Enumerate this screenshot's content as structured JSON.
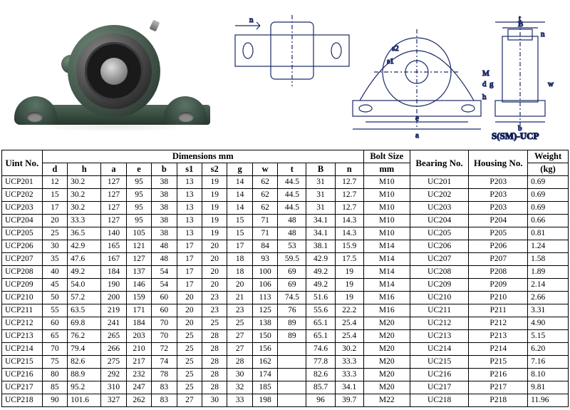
{
  "diagram": {
    "label": "S(SM)-UCP",
    "dims_letters": [
      "n",
      "a",
      "e",
      "b",
      "s1",
      "s2",
      "h",
      "M",
      "d",
      "t",
      "B",
      "g",
      "w"
    ]
  },
  "table": {
    "header": {
      "unit": "Uint No.",
      "dimensions": "Dimensions   mm",
      "bolt": "Bolt Size",
      "bolt_unit": "mm",
      "bearing": "Bearing No.",
      "housing": "Housing No.",
      "weight": "Weight",
      "weight_unit": "(kg)"
    },
    "dim_cols": [
      "d",
      "h",
      "a",
      "e",
      "b",
      "s1",
      "s2",
      "g",
      "w",
      "t",
      "B",
      "n"
    ],
    "rows": [
      {
        "u": "UCP201",
        "d": "12",
        "h": "30.2",
        "a": "127",
        "e": "95",
        "b": "38",
        "s1": "13",
        "s2": "19",
        "g": "14",
        "w": "62",
        "t": "44.5",
        "B": "31",
        "n": "12.7",
        "bolt": "M10",
        "bear": "UC201",
        "house": "P203",
        "wt": "0.69"
      },
      {
        "u": "UCP202",
        "d": "15",
        "h": "30.2",
        "a": "127",
        "e": "95",
        "b": "38",
        "s1": "13",
        "s2": "19",
        "g": "14",
        "w": "62",
        "t": "44.5",
        "B": "31",
        "n": "12.7",
        "bolt": "M10",
        "bear": "UC202",
        "house": "P203",
        "wt": "0.69"
      },
      {
        "u": "UCP203",
        "d": "17",
        "h": "30.2",
        "a": "127",
        "e": "95",
        "b": "38",
        "s1": "13",
        "s2": "19",
        "g": "14",
        "w": "62",
        "t": "44.5",
        "B": "31",
        "n": "12.7",
        "bolt": "M10",
        "bear": "UC203",
        "house": "P203",
        "wt": "0.69"
      },
      {
        "u": "UCP204",
        "d": "20",
        "h": "33.3",
        "a": "127",
        "e": "95",
        "b": "38",
        "s1": "13",
        "s2": "19",
        "g": "15",
        "w": "71",
        "t": "48",
        "B": "34.1",
        "n": "14.3",
        "bolt": "M10",
        "bear": "UC204",
        "house": "P204",
        "wt": "0.66"
      },
      {
        "u": "UCP205",
        "d": "25",
        "h": "36.5",
        "a": "140",
        "e": "105",
        "b": "38",
        "s1": "13",
        "s2": "19",
        "g": "15",
        "w": "71",
        "t": "48",
        "B": "34.1",
        "n": "14.3",
        "bolt": "M10",
        "bear": "UC205",
        "house": "P205",
        "wt": "0.81"
      },
      {
        "u": "UCP206",
        "d": "30",
        "h": "42.9",
        "a": "165",
        "e": "121",
        "b": "48",
        "s1": "17",
        "s2": "20",
        "g": "17",
        "w": "84",
        "t": "53",
        "B": "38.1",
        "n": "15.9",
        "bolt": "M14",
        "bear": "UC206",
        "house": "P206",
        "wt": "1.24"
      },
      {
        "u": "UCP207",
        "d": "35",
        "h": "47.6",
        "a": "167",
        "e": "127",
        "b": "48",
        "s1": "17",
        "s2": "20",
        "g": "18",
        "w": "93",
        "t": "59.5",
        "B": "42.9",
        "n": "17.5",
        "bolt": "M14",
        "bear": "UC207",
        "house": "P207",
        "wt": "1.58"
      },
      {
        "u": "UCP208",
        "d": "40",
        "h": "49.2",
        "a": "184",
        "e": "137",
        "b": "54",
        "s1": "17",
        "s2": "20",
        "g": "18",
        "w": "100",
        "t": "69",
        "B": "49.2",
        "n": "19",
        "bolt": "M14",
        "bear": "UC208",
        "house": "P208",
        "wt": "1.89"
      },
      {
        "u": "UCP209",
        "d": "45",
        "h": "54.0",
        "a": "190",
        "e": "146",
        "b": "54",
        "s1": "17",
        "s2": "20",
        "g": "20",
        "w": "106",
        "t": "69",
        "B": "49.2",
        "n": "19",
        "bolt": "M14",
        "bear": "UC209",
        "house": "P209",
        "wt": "2.14"
      },
      {
        "u": "UCP210",
        "d": "50",
        "h": "57.2",
        "a": "200",
        "e": "159",
        "b": "60",
        "s1": "20",
        "s2": "23",
        "g": "21",
        "w": "113",
        "t": "74.5",
        "B": "51.6",
        "n": "19",
        "bolt": "M16",
        "bear": "UC210",
        "house": "P210",
        "wt": "2.66"
      },
      {
        "u": "UCP211",
        "d": "55",
        "h": "63.5",
        "a": "219",
        "e": "171",
        "b": "60",
        "s1": "20",
        "s2": "23",
        "g": "23",
        "w": "125",
        "t": "76",
        "B": "55.6",
        "n": "22.2",
        "bolt": "M16",
        "bear": "UC211",
        "house": "P211",
        "wt": "3.31"
      },
      {
        "u": "UCP212",
        "d": "60",
        "h": "69.8",
        "a": "241",
        "e": "184",
        "b": "70",
        "s1": "20",
        "s2": "25",
        "g": "25",
        "w": "138",
        "t": "89",
        "B": "65.1",
        "n": "25.4",
        "bolt": "M20",
        "bear": "UC212",
        "house": "P212",
        "wt": "4.90"
      },
      {
        "u": "UCP213",
        "d": "65",
        "h": "76.2",
        "a": "265",
        "e": "203",
        "b": "70",
        "s1": "25",
        "s2": "28",
        "g": "27",
        "w": "150",
        "t": "89",
        "B": "65.1",
        "n": "25.4",
        "bolt": "M20",
        "bear": "UC213",
        "house": "P213",
        "wt": "5.15"
      },
      {
        "u": "UCP214",
        "d": "70",
        "h": "79.4",
        "a": "266",
        "e": "210",
        "b": "72",
        "s1": "25",
        "s2": "28",
        "g": "27",
        "w": "156",
        "t": "",
        "B": "74.6",
        "n": "30.2",
        "bolt": "M20",
        "bear": "UC214",
        "house": "P214",
        "wt": "6.20"
      },
      {
        "u": "UCP215",
        "d": "75",
        "h": "82.6",
        "a": "275",
        "e": "217",
        "b": "74",
        "s1": "25",
        "s2": "28",
        "g": "28",
        "w": "162",
        "t": "",
        "B": "77.8",
        "n": "33.3",
        "bolt": "M20",
        "bear": "UC215",
        "house": "P215",
        "wt": "7.16"
      },
      {
        "u": "UCP216",
        "d": "80",
        "h": "88.9",
        "a": "292",
        "e": "232",
        "b": "78",
        "s1": "25",
        "s2": "28",
        "g": "30",
        "w": "174",
        "t": "",
        "B": "82.6",
        "n": "33.3",
        "bolt": "M20",
        "bear": "UC216",
        "house": "P216",
        "wt": "8.10"
      },
      {
        "u": "UCP217",
        "d": "85",
        "h": "95.2",
        "a": "310",
        "e": "247",
        "b": "83",
        "s1": "25",
        "s2": "28",
        "g": "32",
        "w": "185",
        "t": "",
        "B": "85.7",
        "n": "34.1",
        "bolt": "M20",
        "bear": "UC217",
        "house": "P217",
        "wt": "9.81"
      },
      {
        "u": "UCP218",
        "d": "90",
        "h": "101.6",
        "a": "327",
        "e": "262",
        "b": "83",
        "s1": "27",
        "s2": "30",
        "g": "33",
        "w": "198",
        "t": "",
        "B": "96",
        "n": "39.7",
        "bolt": "M22",
        "bear": "UC218",
        "house": "P218",
        "wt": "11.96"
      }
    ]
  },
  "colors": {
    "line": "#1a2a66",
    "border": "#000000",
    "bg": "#ffffff"
  }
}
